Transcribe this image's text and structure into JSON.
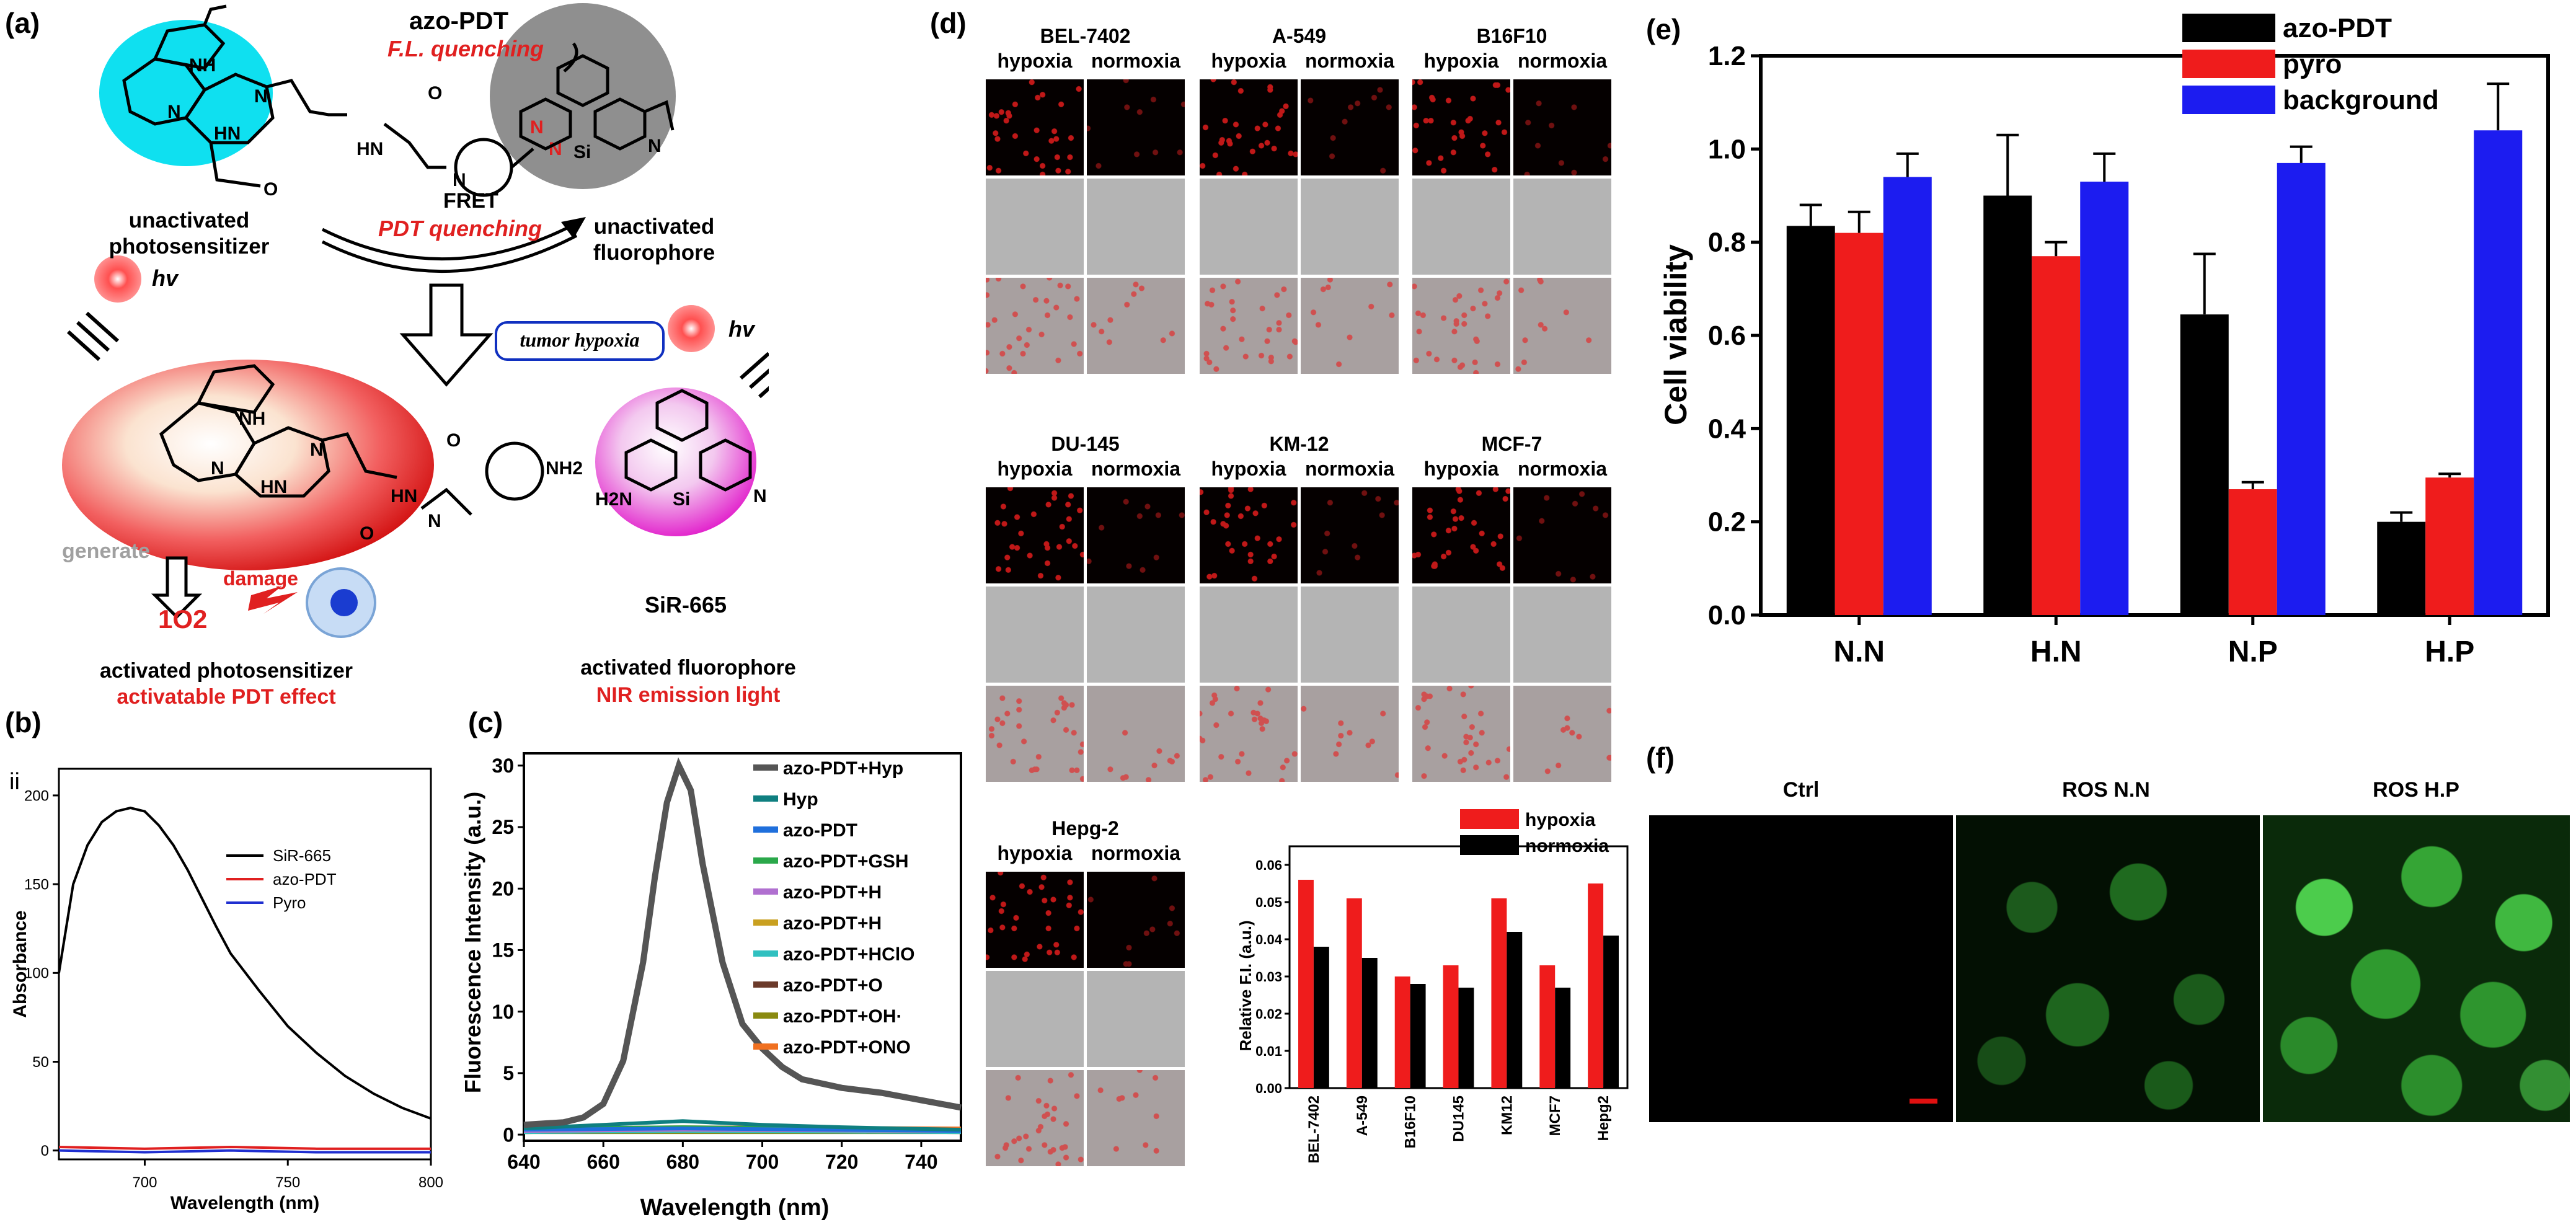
{
  "panel_a": {
    "letter": "(a)",
    "title": "azo-PDT",
    "fl_quench": "F.L. quenching",
    "fret": "FRET",
    "pdt_quench": "PDT quenching",
    "unact_ps_1": "unactivated",
    "unact_ps_2": "photosensitizer",
    "unact_fl_1": "unactivated",
    "unact_fl_2": "fluorophore",
    "tumor": "tumor hypoxia",
    "hv": "hv",
    "generate": "generate",
    "damage": "damage",
    "singlet": "1O2",
    "act_ps": "activated photosensitizer",
    "act_pdt": "activatable PDT effect",
    "sir": "SiR-665",
    "act_fl": "activated fluorophore",
    "nir": "NIR emission light",
    "atoms": {
      "nh": "NH",
      "n": "N",
      "hn": "HN",
      "o": "O",
      "si": "Si",
      "nh2": "NH2",
      "h2n": "H2N"
    }
  },
  "panel_b": {
    "letter": "(b)",
    "corner": "ii",
    "ylabel": "Absorbance",
    "xlabel": "Wavelength (nm)",
    "chart_data": {
      "type": "line",
      "xlim": [
        670,
        800
      ],
      "ylim": [
        -5,
        215
      ],
      "xticks": [
        700,
        750,
        800
      ],
      "yticks": [
        0,
        50,
        100,
        150,
        200
      ],
      "series": [
        {
          "name": "SiR-665",
          "color": "#000000",
          "x": [
            670,
            675,
            680,
            685,
            690,
            695,
            700,
            705,
            710,
            715,
            720,
            725,
            730,
            740,
            750,
            760,
            770,
            780,
            790,
            800
          ],
          "y": [
            100,
            150,
            172,
            185,
            191,
            193,
            191,
            183,
            172,
            158,
            142,
            126,
            111,
            90,
            70,
            55,
            42,
            32,
            24,
            18
          ]
        },
        {
          "name": "azo-PDT",
          "color": "#e02020",
          "x": [
            670,
            700,
            730,
            760,
            800
          ],
          "y": [
            2,
            1,
            2,
            1,
            1
          ]
        },
        {
          "name": "Pyro",
          "color": "#1f2fd0",
          "x": [
            670,
            700,
            730,
            760,
            800
          ],
          "y": [
            0,
            -1,
            0,
            -1,
            -1
          ]
        }
      ]
    }
  },
  "panel_c": {
    "letter": "(c)",
    "ylabel": "Fluorescence Intensity (a.u.)",
    "xlabel": "Wavelength (nm)",
    "chart_data": {
      "type": "line",
      "xlim": [
        640,
        750
      ],
      "ylim": [
        -0.5,
        31
      ],
      "xticks": [
        640,
        660,
        680,
        700,
        720,
        740
      ],
      "yticks": [
        0,
        5,
        10,
        15,
        20,
        25,
        30
      ],
      "series": [
        {
          "name": "azo-PDT+Hyp",
          "color": "#555555",
          "x": [
            640,
            650,
            655,
            660,
            665,
            670,
            673,
            676,
            679,
            682,
            685,
            690,
            695,
            700,
            705,
            710,
            720,
            730,
            740,
            750
          ],
          "y": [
            0.8,
            1.0,
            1.4,
            2.5,
            6,
            14,
            21,
            27,
            30,
            28,
            22,
            14,
            9,
            7,
            5.5,
            4.5,
            3.8,
            3.4,
            2.8,
            2.2
          ]
        },
        {
          "name": "Hyp",
          "color": "#0f7f80",
          "x": [
            640,
            660,
            680,
            700,
            720,
            750
          ],
          "y": [
            0.5,
            0.8,
            1.1,
            0.8,
            0.6,
            0.4
          ]
        },
        {
          "name": "azo-PDT",
          "color": "#1f6fdc",
          "x": [
            640,
            680,
            750
          ],
          "y": [
            0.4,
            0.5,
            0.3
          ]
        },
        {
          "name": "azo-PDT+GSH",
          "color": "#2aa84a",
          "x": [
            640,
            680,
            750
          ],
          "y": [
            0.5,
            0.6,
            0.4
          ]
        },
        {
          "name": "azo-PDT+H2O2",
          "color": "#b070d0",
          "x": [
            640,
            680,
            750
          ],
          "y": [
            0.3,
            0.4,
            0.3
          ]
        },
        {
          "name": "azo-PDT+H2S",
          "color": "#c9a020",
          "x": [
            640,
            680,
            750
          ],
          "y": [
            0.3,
            0.4,
            0.3
          ]
        },
        {
          "name": "azo-PDT+HClO",
          "color": "#30c0c0",
          "x": [
            640,
            680,
            750
          ],
          "y": [
            0.2,
            0.3,
            0.2
          ]
        },
        {
          "name": "azo-PDT+O2-",
          "color": "#6b3a2a",
          "x": [
            640,
            680,
            750
          ],
          "y": [
            0.2,
            0.3,
            0.2
          ]
        },
        {
          "name": "azo-PDT+OH·",
          "color": "#8a8a10",
          "x": [
            640,
            680,
            750
          ],
          "y": [
            0.2,
            0.2,
            0.2
          ]
        },
        {
          "name": "azo-PDT+ONOO-",
          "color": "#f07020",
          "x": [
            640,
            680,
            750
          ],
          "y": [
            0.5,
            0.6,
            0.5
          ]
        }
      ]
    },
    "legend": [
      "azo-PDT+Hyp",
      "Hyp",
      "azo-PDT",
      "azo-PDT+GSH",
      "azo-PDT+H",
      "azo-PDT+H",
      "azo-PDT+HClO",
      "azo-PDT+O",
      "azo-PDT+OH·",
      "azo-PDT+ONO"
    ]
  },
  "panel_d": {
    "letter": "(d)",
    "hyp": "hypoxia",
    "norm": "normoxia",
    "cells": [
      "BEL-7402",
      "A-549",
      "B16F10",
      "DU-145",
      "KM-12",
      "MCF-7",
      "Hepg-2"
    ],
    "ylabel": "Relative F.I. (a.u.)",
    "chart_data": {
      "type": "bar",
      "categories": [
        "BEL-7402",
        "A-549",
        "B16F10",
        "DU145",
        "KM12",
        "MCF7",
        "Hepg2"
      ],
      "series": [
        {
          "name": "hypoxia",
          "color": "#ef1c1c",
          "values": [
            0.056,
            0.051,
            0.03,
            0.033,
            0.051,
            0.033,
            0.055
          ]
        },
        {
          "name": "normoxia",
          "color": "#000000",
          "values": [
            0.038,
            0.035,
            0.028,
            0.027,
            0.042,
            0.027,
            0.041
          ]
        }
      ],
      "ylim": [
        0,
        0.065
      ],
      "yticks": [
        "0.00",
        "0.01",
        "0.02",
        "0.03",
        "0.04",
        "0.05",
        "0.06"
      ]
    }
  },
  "panel_e": {
    "letter": "(e)",
    "ylabel": "Cell viability",
    "chart_data": {
      "type": "bar",
      "categories": [
        "N.N",
        "H.N",
        "N.P",
        "H.P"
      ],
      "series": [
        {
          "name": "azo-PDT",
          "color": "#000000",
          "values": [
            0.835,
            0.9,
            0.645,
            0.2
          ],
          "errors": [
            0.045,
            0.13,
            0.13,
            0.02
          ]
        },
        {
          "name": "pyro",
          "color": "#ef1c1c",
          "values": [
            0.82,
            0.77,
            0.27,
            0.295
          ],
          "errors": [
            0.045,
            0.03,
            0.015,
            0.008
          ]
        },
        {
          "name": "background",
          "color": "#1c1cf0",
          "values": [
            0.94,
            0.93,
            0.97,
            1.04
          ],
          "errors": [
            0.05,
            0.06,
            0.035,
            0.1
          ]
        }
      ],
      "ylim": [
        0,
        1.2
      ],
      "yticks": [
        "0.0",
        "0.2",
        "0.4",
        "0.6",
        "0.8",
        "1.0",
        "1.2"
      ]
    }
  },
  "panel_f": {
    "letter": "(f)",
    "labels": [
      "Ctrl",
      "ROS N.N",
      "ROS H.P"
    ]
  }
}
